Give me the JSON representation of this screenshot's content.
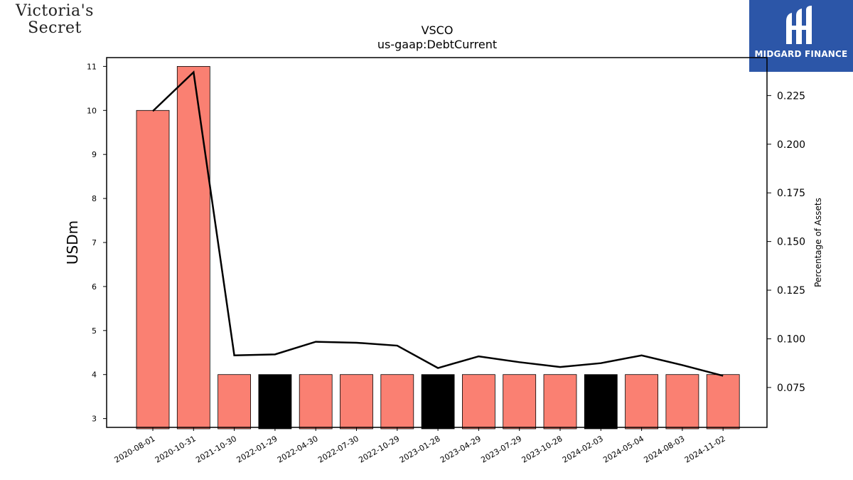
{
  "logos": {
    "left_line1": "Victoria's",
    "left_line2": "Secret",
    "right_text": "MIDGARD FINANCE"
  },
  "colors": {
    "bar_default": "#fa8072",
    "bar_highlight": "#000000",
    "line": "#000000",
    "logo_bg": "#2c56a8"
  },
  "chart_data": {
    "type": "bar",
    "title": "VSCO",
    "subtitle": "us-gaap:DebtCurrent",
    "ylabel": "USDm",
    "y2label": "Percentage of Assets",
    "categories": [
      "2020-08-01",
      "2020-10-31",
      "2021-10-30",
      "2022-01-29",
      "2022-04-30",
      "2022-07-30",
      "2022-10-29",
      "2023-01-28",
      "2023-04-29",
      "2023-07-29",
      "2023-10-28",
      "2024-02-03",
      "2024-05-04",
      "2024-08-03",
      "2024-11-02"
    ],
    "values": [
      10,
      11,
      4,
      4,
      4,
      4,
      4,
      4,
      4,
      4,
      4,
      4,
      4,
      4,
      4
    ],
    "highlighted": [
      false,
      false,
      false,
      true,
      false,
      false,
      false,
      true,
      false,
      false,
      false,
      true,
      false,
      false,
      false
    ],
    "ylim": [
      2.8,
      11.2
    ],
    "yticks": [
      3,
      4,
      5,
      6,
      7,
      8,
      9,
      10,
      11
    ],
    "line_series": {
      "values": [
        0.217,
        0.237,
        0.0915,
        0.092,
        0.0985,
        0.098,
        0.0965,
        0.085,
        0.091,
        0.088,
        0.0855,
        0.0875,
        0.0915,
        0.0865,
        0.081
      ],
      "ylim": [
        0.0545,
        0.2445
      ],
      "yticks": [
        0.075,
        0.1,
        0.125,
        0.15,
        0.175,
        0.2,
        0.225
      ],
      "ytick_labels": [
        "0.075",
        "0.100",
        "0.125",
        "0.150",
        "0.175",
        "0.200",
        "0.225"
      ]
    },
    "grid": false,
    "legend": "none"
  }
}
